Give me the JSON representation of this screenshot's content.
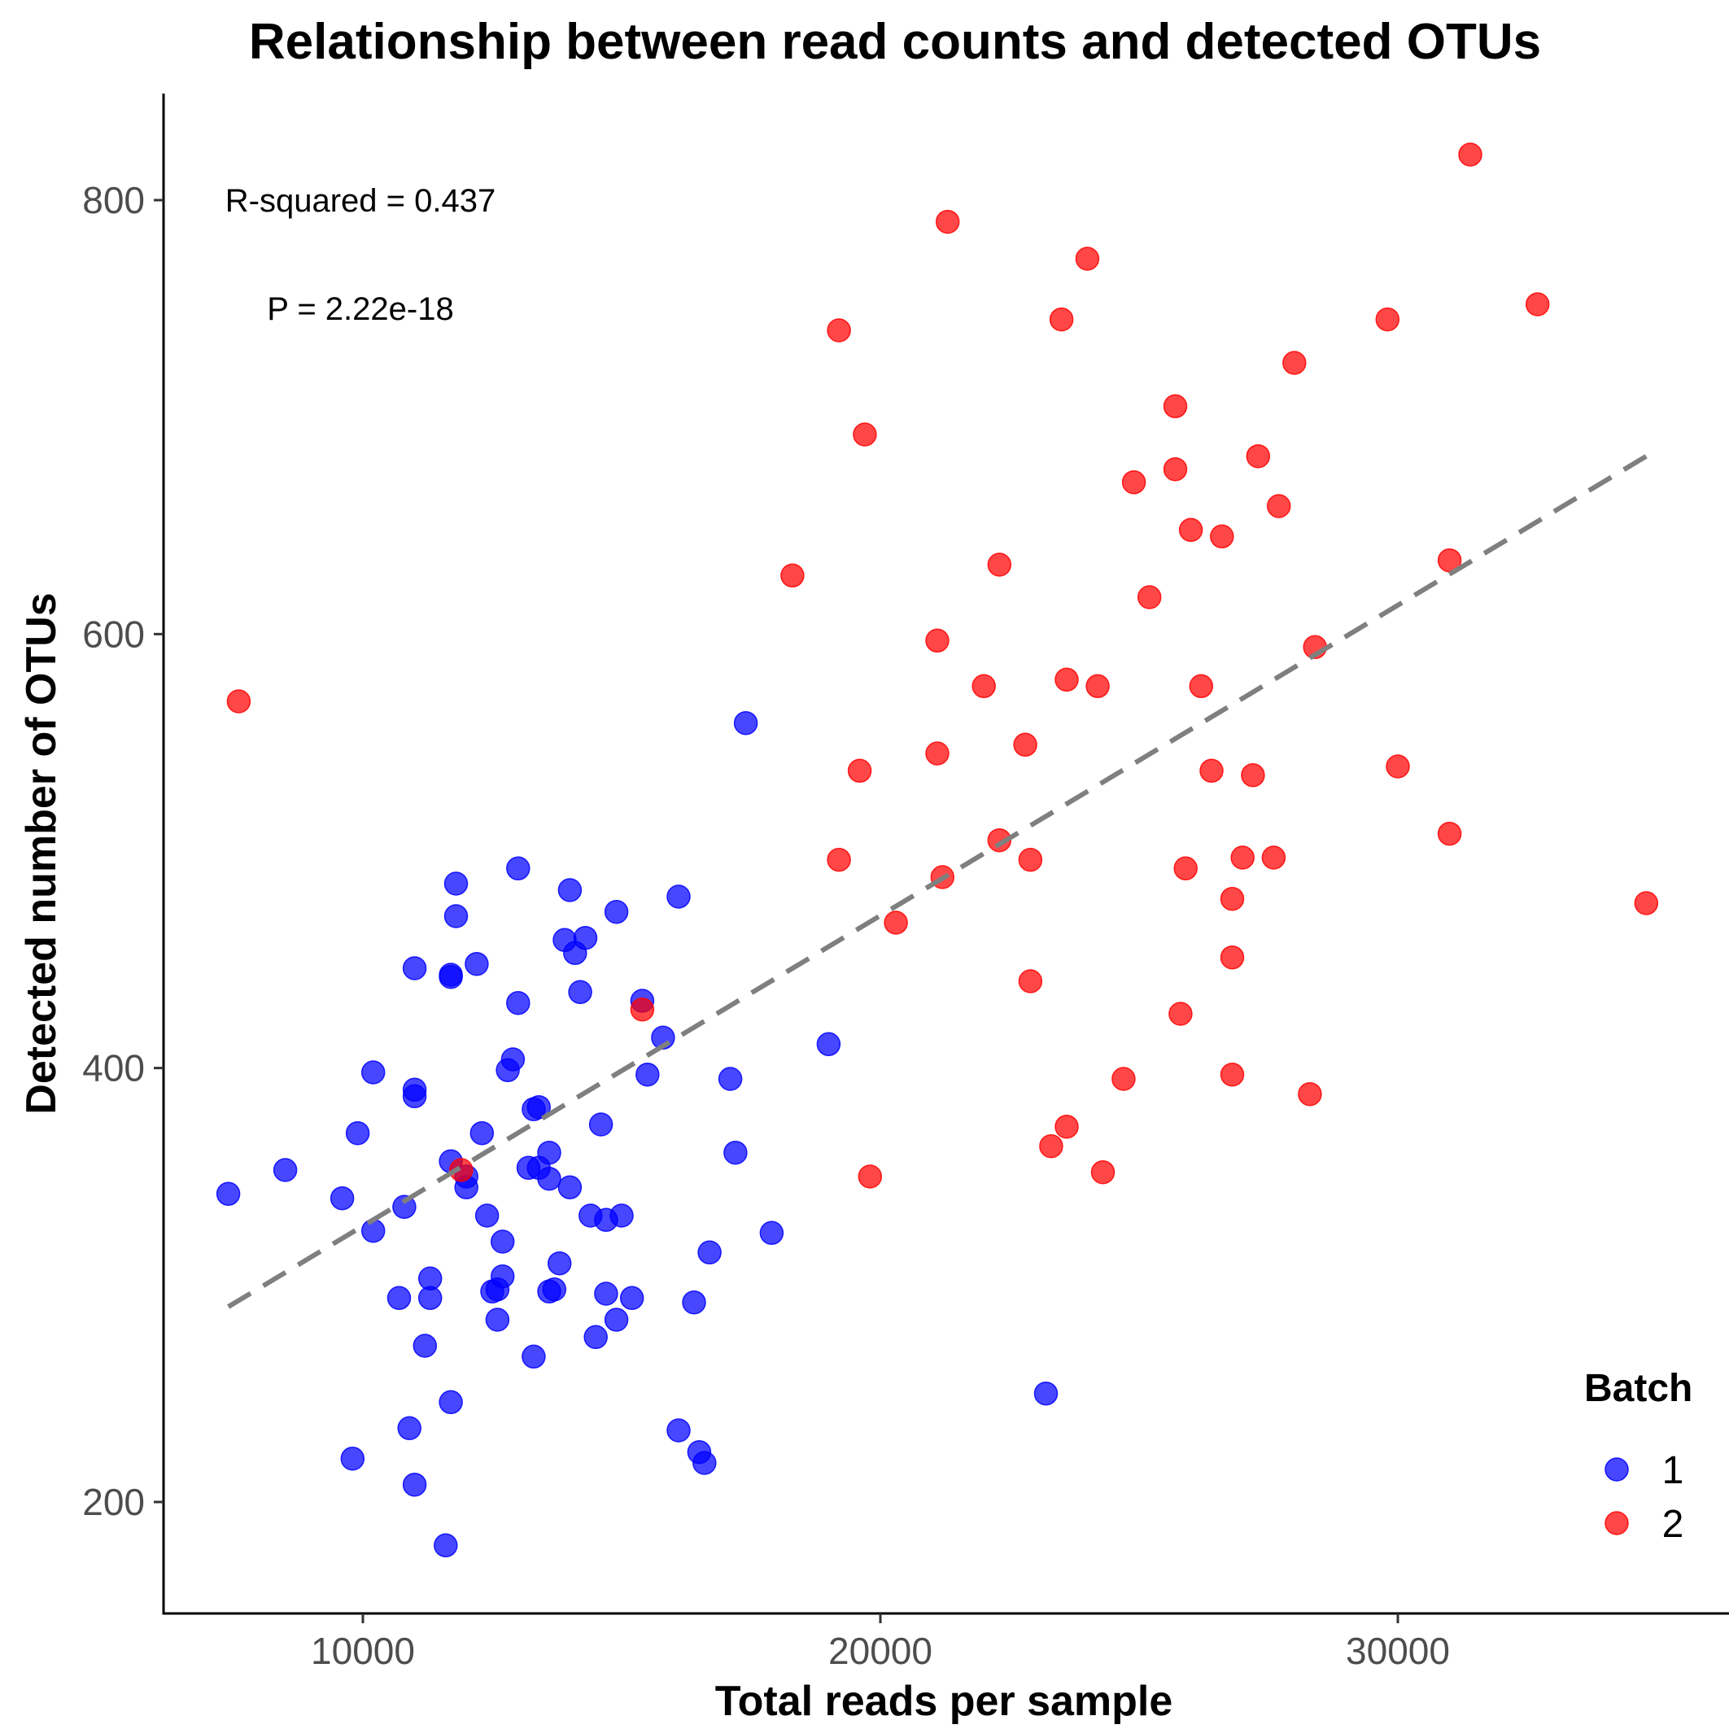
{
  "chart_data": {
    "type": "scatter",
    "title": "Relationship between read counts and detected OTUs",
    "xlabel": "Total reads per sample",
    "ylabel": "Detected number of OTUs",
    "xlim": [
      6000,
      36000
    ],
    "ylim": [
      150,
      850
    ],
    "x_ticks": [
      10000,
      20000,
      30000
    ],
    "y_ticks": [
      200,
      400,
      600,
      800
    ],
    "grid": false,
    "annotations": [
      "R-squared = 0.437",
      "P = 2.22e-18"
    ],
    "trend_line": {
      "style": "dashed",
      "color": "#7f7f7f",
      "x": [
        7400,
        34800
      ],
      "y": [
        290,
        682
      ]
    },
    "legend": {
      "title": "Batch",
      "position": "bottom-right"
    },
    "series": [
      {
        "name": "1",
        "color": "#0000ff",
        "points": [
          [
            7400,
            342
          ],
          [
            8500,
            353
          ],
          [
            9600,
            340
          ],
          [
            9800,
            220
          ],
          [
            9900,
            370
          ],
          [
            10200,
            398
          ],
          [
            10200,
            325
          ],
          [
            10700,
            294
          ],
          [
            10800,
            336
          ],
          [
            10900,
            234
          ],
          [
            11000,
            208
          ],
          [
            11000,
            446
          ],
          [
            11000,
            390
          ],
          [
            11000,
            387
          ],
          [
            11200,
            272
          ],
          [
            11300,
            303
          ],
          [
            11300,
            294
          ],
          [
            11600,
            180
          ],
          [
            11700,
            357
          ],
          [
            11700,
            443
          ],
          [
            11700,
            442
          ],
          [
            11700,
            246
          ],
          [
            11800,
            470
          ],
          [
            11800,
            485
          ],
          [
            12000,
            345
          ],
          [
            12000,
            350
          ],
          [
            12200,
            448
          ],
          [
            12300,
            370
          ],
          [
            12400,
            332
          ],
          [
            12500,
            297
          ],
          [
            12600,
            284
          ],
          [
            12600,
            298
          ],
          [
            12700,
            304
          ],
          [
            12700,
            320
          ],
          [
            12800,
            399
          ],
          [
            12900,
            404
          ],
          [
            13000,
            430
          ],
          [
            13000,
            492
          ],
          [
            13200,
            354
          ],
          [
            13300,
            381
          ],
          [
            13300,
            267
          ],
          [
            13400,
            382
          ],
          [
            13400,
            354
          ],
          [
            13600,
            297
          ],
          [
            13600,
            349
          ],
          [
            13600,
            361
          ],
          [
            13700,
            298
          ],
          [
            13800,
            310
          ],
          [
            13900,
            459
          ],
          [
            14000,
            345
          ],
          [
            14000,
            482
          ],
          [
            14100,
            453
          ],
          [
            14200,
            435
          ],
          [
            14300,
            460
          ],
          [
            14400,
            332
          ],
          [
            14500,
            276
          ],
          [
            14600,
            374
          ],
          [
            14700,
            296
          ],
          [
            14700,
            330
          ],
          [
            14900,
            284
          ],
          [
            14900,
            472
          ],
          [
            15000,
            332
          ],
          [
            15200,
            294
          ],
          [
            15400,
            431
          ],
          [
            15500,
            397
          ],
          [
            15800,
            414
          ],
          [
            16100,
            233
          ],
          [
            16100,
            479
          ],
          [
            16400,
            292
          ],
          [
            16500,
            223
          ],
          [
            16600,
            218
          ],
          [
            16700,
            315
          ],
          [
            17100,
            395
          ],
          [
            17200,
            361
          ],
          [
            17400,
            559
          ],
          [
            17900,
            324
          ],
          [
            19000,
            411
          ],
          [
            23200,
            250
          ]
        ]
      },
      {
        "name": "2",
        "color": "#ff0000",
        "points": [
          [
            7600,
            569
          ],
          [
            11900,
            353
          ],
          [
            15400,
            427
          ],
          [
            18300,
            627
          ],
          [
            19200,
            740
          ],
          [
            19200,
            496
          ],
          [
            19600,
            537
          ],
          [
            19700,
            692
          ],
          [
            19800,
            350
          ],
          [
            20300,
            467
          ],
          [
            21100,
            545
          ],
          [
            21100,
            597
          ],
          [
            21200,
            488
          ],
          [
            21300,
            790
          ],
          [
            22000,
            576
          ],
          [
            22300,
            632
          ],
          [
            22300,
            505
          ],
          [
            22800,
            549
          ],
          [
            22900,
            496
          ],
          [
            22900,
            440
          ],
          [
            23300,
            364
          ],
          [
            23500,
            745
          ],
          [
            23600,
            373
          ],
          [
            23600,
            579
          ],
          [
            24000,
            773
          ],
          [
            24200,
            576
          ],
          [
            24300,
            352
          ],
          [
            24700,
            395
          ],
          [
            24900,
            670
          ],
          [
            25200,
            617
          ],
          [
            25700,
            705
          ],
          [
            25700,
            676
          ],
          [
            25800,
            425
          ],
          [
            25900,
            492
          ],
          [
            26000,
            648
          ],
          [
            26200,
            576
          ],
          [
            26400,
            537
          ],
          [
            26600,
            645
          ],
          [
            26800,
            478
          ],
          [
            26800,
            451
          ],
          [
            26800,
            397
          ],
          [
            27000,
            497
          ],
          [
            27200,
            535
          ],
          [
            27300,
            682
          ],
          [
            27600,
            497
          ],
          [
            27700,
            659
          ],
          [
            28000,
            725
          ],
          [
            28300,
            388
          ],
          [
            28400,
            594
          ],
          [
            29800,
            745
          ],
          [
            30000,
            539
          ],
          [
            31000,
            634
          ],
          [
            31000,
            508
          ],
          [
            31400,
            821
          ],
          [
            32700,
            752
          ],
          [
            34800,
            476
          ]
        ]
      }
    ]
  }
}
